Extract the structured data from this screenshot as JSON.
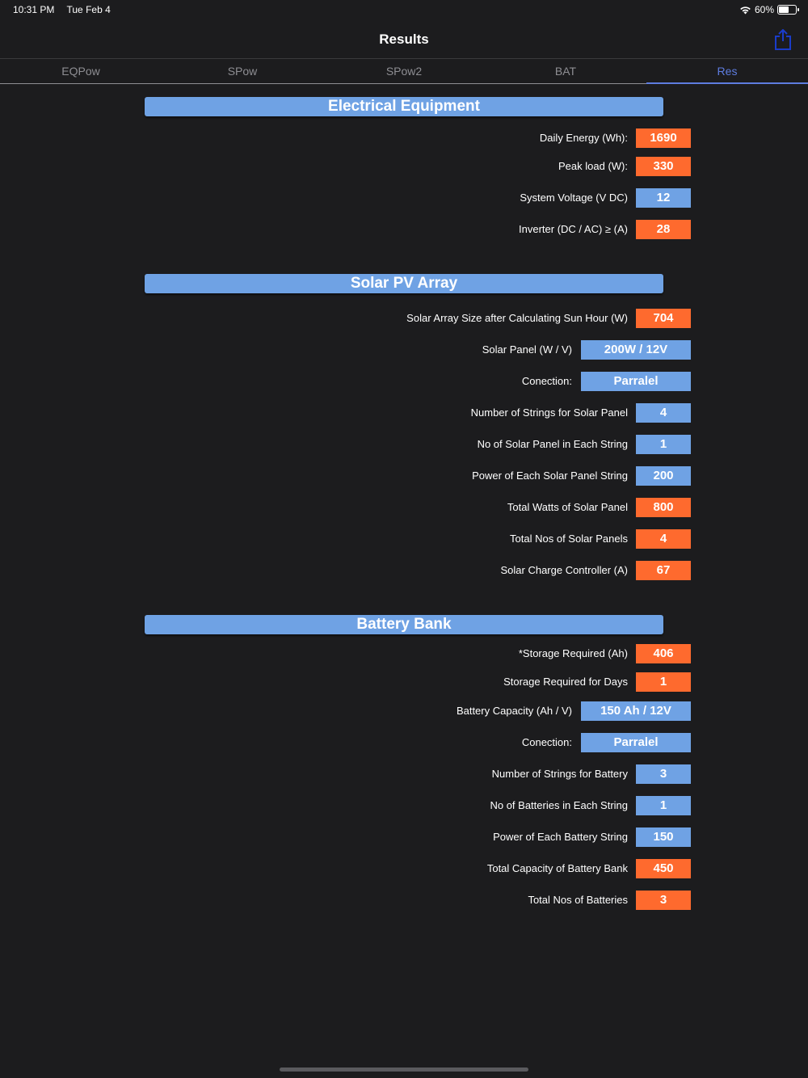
{
  "status": {
    "time": "10:31 PM",
    "date": "Tue Feb 4",
    "battery": "60%",
    "battery_level": 0.6
  },
  "nav": {
    "title": "Results",
    "share_icon": "share-icon"
  },
  "tabs": [
    {
      "label": "EQPow"
    },
    {
      "label": "SPow"
    },
    {
      "label": "SPow2"
    },
    {
      "label": "BAT"
    },
    {
      "label": "Res",
      "active": true
    }
  ],
  "colors": {
    "orange": "#fe6a2e",
    "blue": "#6fa2e4",
    "accent": "#5e7de0",
    "background": "#1c1c1e"
  },
  "sections": {
    "electrical": {
      "title": "Electrical Equipment",
      "rows": [
        {
          "label": "Daily Energy (Wh):",
          "value": "1690"
        },
        {
          "label": "Peak load (W):",
          "value": "330"
        },
        {
          "label": "System Voltage (V DC)",
          "value": "12"
        },
        {
          "label": "Inverter (DC / AC) ≥ (A)",
          "value": "28"
        }
      ]
    },
    "solar": {
      "title": "Solar PV Array",
      "rows": [
        {
          "label": "Solar Array Size after Calculating Sun Hour  (W)",
          "value": "704"
        },
        {
          "label": "Solar Panel (W / V)",
          "value": "200W / 12V"
        },
        {
          "label": "Conection:",
          "value": "Parralel"
        },
        {
          "label": "Number of Strings for Solar Panel",
          "value": "4"
        },
        {
          "label": "No of Solar Panel in Each String",
          "value": "1"
        },
        {
          "label": "Power of Each Solar Panel String",
          "value": "200"
        },
        {
          "label": "Total Watts of Solar Panel",
          "value": "800"
        },
        {
          "label": "Total Nos of Solar Panels",
          "value": "4"
        },
        {
          "label": "Solar Charge Controller (A)",
          "value": "67"
        }
      ]
    },
    "battery": {
      "title": "Battery Bank",
      "rows": [
        {
          "label": "*Storage Required (Ah)",
          "value": "406"
        },
        {
          "label": "Storage Required for Days",
          "value": "1"
        },
        {
          "label": "Battery Capacity (Ah / V)",
          "value": "150 Ah  / 12V"
        },
        {
          "label": "Conection:",
          "value": "Parralel"
        },
        {
          "label": "Number of Strings for Battery",
          "value": "3"
        },
        {
          "label": "No of Batteries in Each String",
          "value": "1"
        },
        {
          "label": "Power of Each Battery String",
          "value": "150"
        },
        {
          "label": "Total Capacity of Battery Bank",
          "value": "450"
        },
        {
          "label": "Total Nos of Batteries",
          "value": "3"
        }
      ]
    }
  }
}
